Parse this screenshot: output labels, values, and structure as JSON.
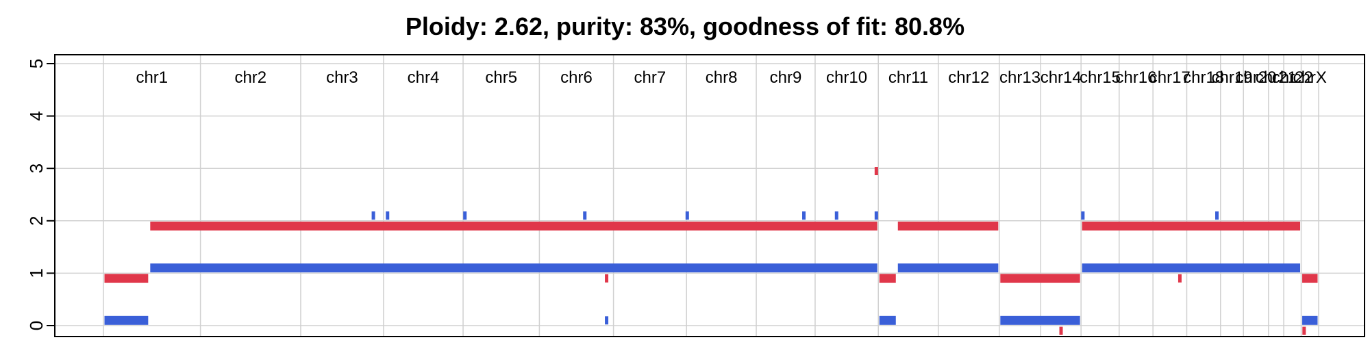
{
  "chart_data": {
    "type": "scatter",
    "title": "Ploidy: 2.62, purity: 83%, goodness of fit: 80.8%",
    "xlabel": "",
    "ylabel": "",
    "ylim": [
      0,
      5
    ],
    "y_ticks": [
      "0",
      "1",
      "2",
      "3",
      "4",
      "5"
    ],
    "grid": true,
    "colors": {
      "total_copy_number": "#e0374a",
      "minor_copy_number": "#3a5fd8",
      "grid": "#d0d0d0",
      "axis": "#000000"
    },
    "chromosomes": [
      {
        "label": "chr1",
        "start": 0.0,
        "end": 8.9
      },
      {
        "label": "chr2",
        "start": 8.9,
        "end": 18.1
      },
      {
        "label": "chr3",
        "start": 18.1,
        "end": 25.7
      },
      {
        "label": "chr4",
        "start": 25.7,
        "end": 33.0
      },
      {
        "label": "chr5",
        "start": 33.0,
        "end": 40.0
      },
      {
        "label": "chr6",
        "start": 40.0,
        "end": 46.8
      },
      {
        "label": "chr7",
        "start": 46.8,
        "end": 53.5
      },
      {
        "label": "chr8",
        "start": 53.5,
        "end": 59.9
      },
      {
        "label": "chr9",
        "start": 59.9,
        "end": 65.3
      },
      {
        "label": "chr10",
        "start": 65.3,
        "end": 71.1
      },
      {
        "label": "chr11",
        "start": 71.1,
        "end": 76.6
      },
      {
        "label": "chr12",
        "start": 76.6,
        "end": 82.2
      },
      {
        "label": "chr13",
        "start": 82.2,
        "end": 86.0
      },
      {
        "label": "chr14",
        "start": 86.0,
        "end": 89.7
      },
      {
        "label": "chr15",
        "start": 89.7,
        "end": 93.2
      },
      {
        "label": "chr16",
        "start": 93.2,
        "end": 96.3
      },
      {
        "label": "chr17",
        "start": 96.3,
        "end": 99.4
      },
      {
        "label": "chr18",
        "start": 99.4,
        "end": 102.5
      },
      {
        "label": "chr19",
        "start": 102.5,
        "end": 104.6
      },
      {
        "label": "chr20",
        "start": 104.6,
        "end": 106.9
      },
      {
        "label": "chr21",
        "start": 106.9,
        "end": 108.3
      },
      {
        "label": "chr22",
        "start": 108.3,
        "end": 109.9
      },
      {
        "label": "chrX",
        "start": 109.9,
        "end": 111.5
      }
    ],
    "series": [
      {
        "key": "total",
        "color": "#e0374a",
        "segments": [
          {
            "start": 0.0,
            "end": 4.2,
            "y": 0.9
          },
          {
            "start": 4.2,
            "end": 71.1,
            "y": 1.9
          },
          {
            "start": 71.1,
            "end": 72.8,
            "y": 0.9
          },
          {
            "start": 72.8,
            "end": 82.2,
            "y": 1.9
          },
          {
            "start": 82.2,
            "end": 89.7,
            "y": 0.9
          },
          {
            "start": 89.7,
            "end": 109.9,
            "y": 1.9
          },
          {
            "start": 109.9,
            "end": 111.5,
            "y": 0.9
          }
        ],
        "outliers": [
          {
            "x": 46.2,
            "y": 0.9
          },
          {
            "x": 70.95,
            "y": 2.95
          },
          {
            "x": 87.9,
            "y": -0.1
          },
          {
            "x": 98.8,
            "y": 0.9
          },
          {
            "x": 110.2,
            "y": -0.1
          }
        ]
      },
      {
        "key": "minor",
        "color": "#3a5fd8",
        "segments": [
          {
            "start": 0.0,
            "end": 4.2,
            "y": 0.1
          },
          {
            "start": 4.2,
            "end": 71.1,
            "y": 1.1
          },
          {
            "start": 71.1,
            "end": 72.8,
            "y": 0.1
          },
          {
            "start": 72.8,
            "end": 82.2,
            "y": 1.1
          },
          {
            "start": 82.2,
            "end": 89.7,
            "y": 0.1
          },
          {
            "start": 89.7,
            "end": 109.9,
            "y": 1.1
          },
          {
            "start": 109.9,
            "end": 111.5,
            "y": 0.1
          }
        ],
        "outliers": [
          {
            "x": 24.8,
            "y": 2.1
          },
          {
            "x": 26.1,
            "y": 2.1
          },
          {
            "x": 33.2,
            "y": 2.1
          },
          {
            "x": 44.2,
            "y": 2.1
          },
          {
            "x": 46.2,
            "y": 0.1
          },
          {
            "x": 53.6,
            "y": 2.1
          },
          {
            "x": 64.3,
            "y": 2.1
          },
          {
            "x": 67.3,
            "y": 2.1
          },
          {
            "x": 70.95,
            "y": 2.1
          },
          {
            "x": 89.9,
            "y": 2.1
          },
          {
            "x": 102.2,
            "y": 2.1
          }
        ]
      }
    ]
  }
}
